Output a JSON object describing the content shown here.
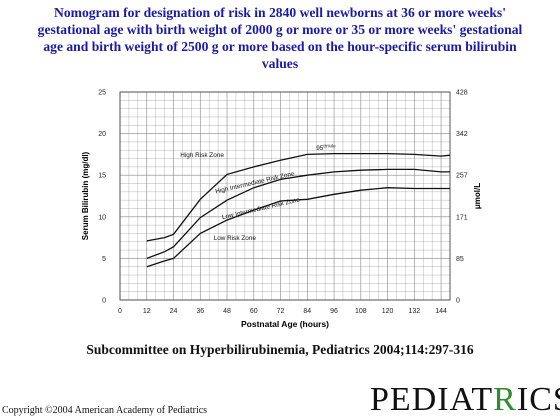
{
  "title": {
    "line1": "Nomogram for designation of risk in 2840 well newborns at 36 or more weeks'",
    "line2": "gestational age with birth weight of 2000 g or more or 35 or more weeks' gestational",
    "line3": "age and birth weight of 2500 g or more based on the hour-specific serum bilirubin",
    "line4": "values"
  },
  "citation": "Subcommittee on Hyperbilirubinemia,   Pediatrics 2004;114:297-316",
  "copyright": "Copyright ©2004 American Academy of Pediatrics",
  "logo": {
    "text": "PEDIATRICS"
  },
  "colors": {
    "title": "#1a1aa6",
    "grid": "#888888",
    "curve": "#111111",
    "logo_leaf": "#2e8b2e"
  },
  "chart_data": {
    "type": "line",
    "xlabel": "Postnatal Age (hours)",
    "ylabel": "Serum Bilirubin (mg/dl)",
    "y2label": "μmol/L",
    "xlim": [
      0,
      148
    ],
    "ylim": [
      0,
      25
    ],
    "xticks": [
      0,
      12,
      24,
      36,
      48,
      60,
      72,
      84,
      96,
      108,
      120,
      132,
      144
    ],
    "yticks": [
      0,
      5,
      10,
      15,
      20,
      25
    ],
    "y2ticks": [
      {
        "label": "0",
        "at": 0
      },
      {
        "label": "85",
        "at": 5
      },
      {
        "label": "171",
        "at": 10
      },
      {
        "label": "257",
        "at": 15
      },
      {
        "label": "342",
        "at": 20
      },
      {
        "label": "428",
        "at": 25
      }
    ],
    "grid": true,
    "series": [
      {
        "x": [
          12,
          20,
          24,
          36,
          48,
          60,
          72,
          84,
          96,
          108,
          120,
          132,
          144,
          148
        ],
        "y": [
          7.1,
          7.5,
          7.9,
          12.1,
          15.1,
          16.0,
          16.8,
          17.5,
          17.6,
          17.6,
          17.6,
          17.5,
          17.3,
          17.4
        ]
      },
      {
        "x": [
          12,
          20,
          24,
          36,
          48,
          60,
          72,
          84,
          96,
          108,
          120,
          132,
          144,
          148
        ],
        "y": [
          5.0,
          5.8,
          6.4,
          9.9,
          12.0,
          13.5,
          14.5,
          15.0,
          15.4,
          15.6,
          15.7,
          15.7,
          15.4,
          15.4
        ]
      },
      {
        "x": [
          12,
          20,
          24,
          36,
          48,
          60,
          72,
          84,
          96,
          108,
          120,
          132,
          144,
          148
        ],
        "y": [
          4.0,
          4.7,
          5.0,
          8.0,
          9.6,
          10.8,
          11.9,
          12.1,
          12.7,
          13.2,
          13.5,
          13.4,
          13.4,
          13.4
        ]
      }
    ],
    "annotations": [
      {
        "text": "High Risk Zone",
        "x": 27,
        "y": 17.2
      },
      {
        "text": "95",
        "x": 88,
        "y": 18.0,
        "sup": "th",
        "suffix": "%ile"
      },
      {
        "text": "High Intermediate Risk Zone",
        "x": 43,
        "y": 12.8,
        "angle": -13
      },
      {
        "text": "Low Intermediate Risk Zone",
        "x": 46,
        "y": 9.7,
        "angle": -13
      },
      {
        "text": "Low Risk Zone",
        "x": 42,
        "y": 7.2
      }
    ]
  }
}
